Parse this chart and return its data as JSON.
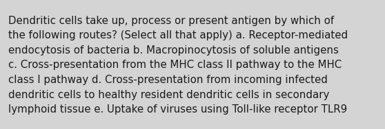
{
  "background_color": "#d4d4d4",
  "text_color": "#1a1a1a",
  "text": "Dendritic cells take up, process or present antigen by which of\nthe following routes? (Select all that apply) a. Receptor-mediated\nendocytosis of bacteria b. Macropinocytosis of soluble antigens\nc. Cross-presentation from the MHC class II pathway to the MHC\nclass I pathway d. Cross-presentation from incoming infected\ndendritic cells to healthy resident dendritic cells in secondary\nlymphoid tissue e. Uptake of viruses using Toll-like receptor TLR9",
  "font_size": 10.8,
  "fig_width": 5.58,
  "fig_height": 1.88,
  "dpi": 100,
  "linespacing": 1.55
}
